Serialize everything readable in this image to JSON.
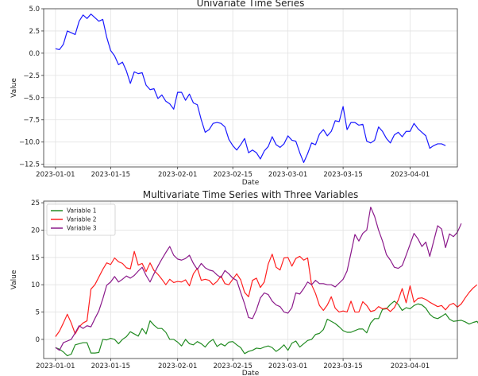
{
  "chart_data": [
    {
      "type": "line",
      "title": "Univariate Time Series",
      "xlabel": "Date",
      "ylabel": "Value",
      "ylim": [
        -12.8,
        5.0
      ],
      "yticks": [
        5.0,
        2.5,
        0.0,
        -2.5,
        -5.0,
        -7.5,
        -10.0,
        -12.5
      ],
      "ytick_labels": [
        "5.0",
        "2.5",
        "0.0",
        "−2.5",
        "−5.0",
        "−7.5",
        "−10.0",
        "−12.5"
      ],
      "x_start": "2023-01-01",
      "xlim": [
        "2022-12-29",
        "2023-04-13"
      ],
      "xticks": [
        "2023-01-01",
        "2023-01-15",
        "2023-02-01",
        "2023-02-15",
        "2023-03-01",
        "2023-03-15",
        "2023-04-01"
      ],
      "grid": true,
      "series": [
        {
          "color": "#1a1aff",
          "values": [
            0.5,
            0.4,
            1.0,
            2.5,
            2.3,
            2.1,
            3.6,
            4.3,
            3.9,
            4.4,
            4.0,
            3.6,
            3.8,
            1.8,
            0.3,
            -0.3,
            -1.3,
            -1.0,
            -2.0,
            -3.4,
            -2.1,
            -2.3,
            -2.2,
            -3.6,
            -4.1,
            -4.0,
            -5.1,
            -4.7,
            -5.4,
            -5.7,
            -6.3,
            -4.4,
            -4.4,
            -5.3,
            -4.6,
            -5.6,
            -5.8,
            -7.5,
            -8.9,
            -8.6,
            -7.9,
            -7.8,
            -7.9,
            -8.3,
            -9.7,
            -10.4,
            -10.9,
            -10.3,
            -9.6,
            -11.2,
            -10.9,
            -11.2,
            -11.9,
            -11.0,
            -10.5,
            -9.4,
            -10.3,
            -10.6,
            -10.2,
            -9.3,
            -9.8,
            -9.9,
            -11.2,
            -12.3,
            -11.3,
            -10.1,
            -10.3,
            -9.1,
            -8.6,
            -9.3,
            -8.8,
            -7.6,
            -7.7,
            -6.0,
            -8.6,
            -7.8,
            -7.8,
            -8.1,
            -8.0,
            -9.9,
            -10.1,
            -9.8,
            -8.3,
            -8.8,
            -9.6,
            -10.1,
            -9.2,
            -8.9,
            -9.4,
            -8.8,
            -8.8,
            -7.9,
            -8.5,
            -8.9,
            -9.3,
            -10.7,
            -10.4,
            -10.2,
            -10.2,
            -10.4
          ]
        }
      ]
    },
    {
      "type": "line",
      "title": "Multivariate Time Series with Three Variables",
      "xlabel": "Date",
      "ylabel": "Value",
      "ylim": [
        -3.5,
        25.3
      ],
      "yticks": [
        25,
        20,
        15,
        10,
        5,
        0
      ],
      "ytick_labels": [
        "25",
        "20",
        "15",
        "10",
        "5",
        "0"
      ],
      "x_start": "2023-01-01",
      "xlim": [
        "2022-12-29",
        "2023-04-13"
      ],
      "xticks": [
        "2023-01-01",
        "2023-01-15",
        "2023-02-01",
        "2023-02-15",
        "2023-03-01",
        "2023-03-15",
        "2023-04-01"
      ],
      "grid": true,
      "legend": "upper-left",
      "series": [
        {
          "name": "Variable 1",
          "color": "#228b22",
          "values": [
            -1.5,
            -1.8,
            -2.3,
            -3.0,
            -2.7,
            -1.0,
            -0.8,
            -0.6,
            -0.6,
            -2.5,
            -2.5,
            -2.4,
            0.0,
            -0.1,
            0.2,
            0.0,
            -0.8,
            0.0,
            0.5,
            1.4,
            1.0,
            0.6,
            2.0,
            1.0,
            3.4,
            2.6,
            2.0,
            2.0,
            1.3,
            0.0,
            0.0,
            -0.5,
            -1.2,
            0.0,
            -0.8,
            -1.0,
            -0.4,
            -0.8,
            -1.4,
            -0.5,
            0.0,
            -1.3,
            -0.8,
            -1.2,
            -0.5,
            -0.4,
            -1.0,
            -1.5,
            -2.6,
            -2.2,
            -2.0,
            -1.6,
            -1.7,
            -1.4,
            -1.2,
            -1.5,
            -2.2,
            -1.7,
            -1.0,
            -2.0,
            -0.7,
            -0.3,
            -1.4,
            -0.8,
            -0.2,
            0.0,
            0.9,
            1.1,
            1.8,
            3.7,
            3.3,
            2.9,
            2.3,
            1.6,
            1.3,
            1.3,
            1.6,
            1.9,
            1.9,
            1.2,
            3.0,
            3.8,
            3.8,
            5.5,
            5.6,
            6.4,
            7.0,
            6.4,
            5.3,
            5.8,
            5.6,
            6.2,
            6.5,
            6.3,
            5.7,
            4.6,
            4.0,
            3.8,
            4.2,
            4.7,
            3.7,
            3.3,
            3.4,
            3.5,
            3.2,
            2.8,
            3.1,
            3.3,
            2.2
          ]
        },
        {
          "name": "Variable 2",
          "color": "#ff2020",
          "values": [
            0.5,
            1.5,
            3.0,
            4.6,
            3.0,
            1.0,
            2.3,
            3.0,
            3.4,
            9.2,
            10.0,
            11.4,
            12.8,
            14.0,
            13.7,
            14.9,
            14.2,
            13.9,
            13.1,
            12.9,
            16.1,
            13.6,
            13.9,
            12.4,
            14.0,
            12.6,
            11.9,
            11.0,
            10.0,
            11.0,
            10.4,
            10.6,
            10.5,
            10.9,
            9.8,
            12.0,
            13.0,
            10.8,
            11.0,
            10.8,
            10.0,
            10.6,
            11.6,
            10.2,
            10.0,
            11.0,
            12.0,
            10.9,
            8.6,
            7.8,
            10.8,
            11.2,
            9.5,
            10.5,
            13.8,
            15.6,
            13.2,
            12.7,
            14.9,
            15.0,
            13.4,
            14.8,
            15.2,
            14.5,
            14.9,
            10.0,
            8.4,
            6.2,
            5.3,
            6.3,
            7.8,
            5.7,
            5.0,
            5.2,
            5.0,
            7.0,
            5.0,
            5.0,
            6.9,
            6.2,
            5.1,
            5.3,
            6.0,
            5.6,
            5.7,
            5.1,
            5.8,
            7.2,
            9.3,
            6.7,
            9.8,
            6.8,
            7.5,
            7.6,
            7.3,
            6.8,
            6.4,
            6.0,
            6.2,
            5.4,
            6.3,
            6.6,
            5.9,
            6.5,
            7.6,
            8.6,
            9.4,
            10.0
          ]
        },
        {
          "name": "Variable 3",
          "color": "#8b1a8b",
          "values": [
            -1.5,
            -2.0,
            -0.6,
            -0.3,
            0.0,
            1.2,
            2.5,
            2.0,
            2.5,
            2.3,
            3.8,
            5.2,
            7.4,
            9.9,
            10.5,
            11.5,
            10.5,
            11.0,
            11.6,
            11.2,
            11.7,
            12.5,
            13.2,
            11.7,
            10.5,
            12.0,
            13.4,
            14.7,
            15.9,
            17.0,
            15.4,
            14.7,
            14.5,
            14.8,
            15.4,
            13.9,
            12.8,
            13.9,
            13.1,
            12.7,
            12.5,
            11.8,
            11.3,
            12.6,
            12.0,
            11.2,
            10.8,
            8.6,
            6.5,
            4.0,
            3.8,
            5.4,
            7.6,
            8.5,
            8.2,
            7.0,
            6.3,
            6.0,
            5.0,
            4.8,
            5.8,
            8.5,
            8.3,
            9.3,
            10.5,
            10.0,
            10.8,
            10.2,
            10.2,
            10.0,
            10.0,
            9.6,
            10.3,
            11.0,
            12.5,
            15.8,
            19.2,
            18.0,
            19.4,
            20.0,
            24.2,
            22.5,
            20.0,
            18.0,
            15.5,
            14.5,
            13.2,
            13.0,
            13.5,
            15.4,
            17.4,
            19.4,
            18.4,
            17.0,
            17.8,
            15.2,
            18.0,
            20.8,
            20.2,
            16.8,
            19.3,
            18.8,
            19.6,
            21.2
          ]
        }
      ]
    }
  ]
}
